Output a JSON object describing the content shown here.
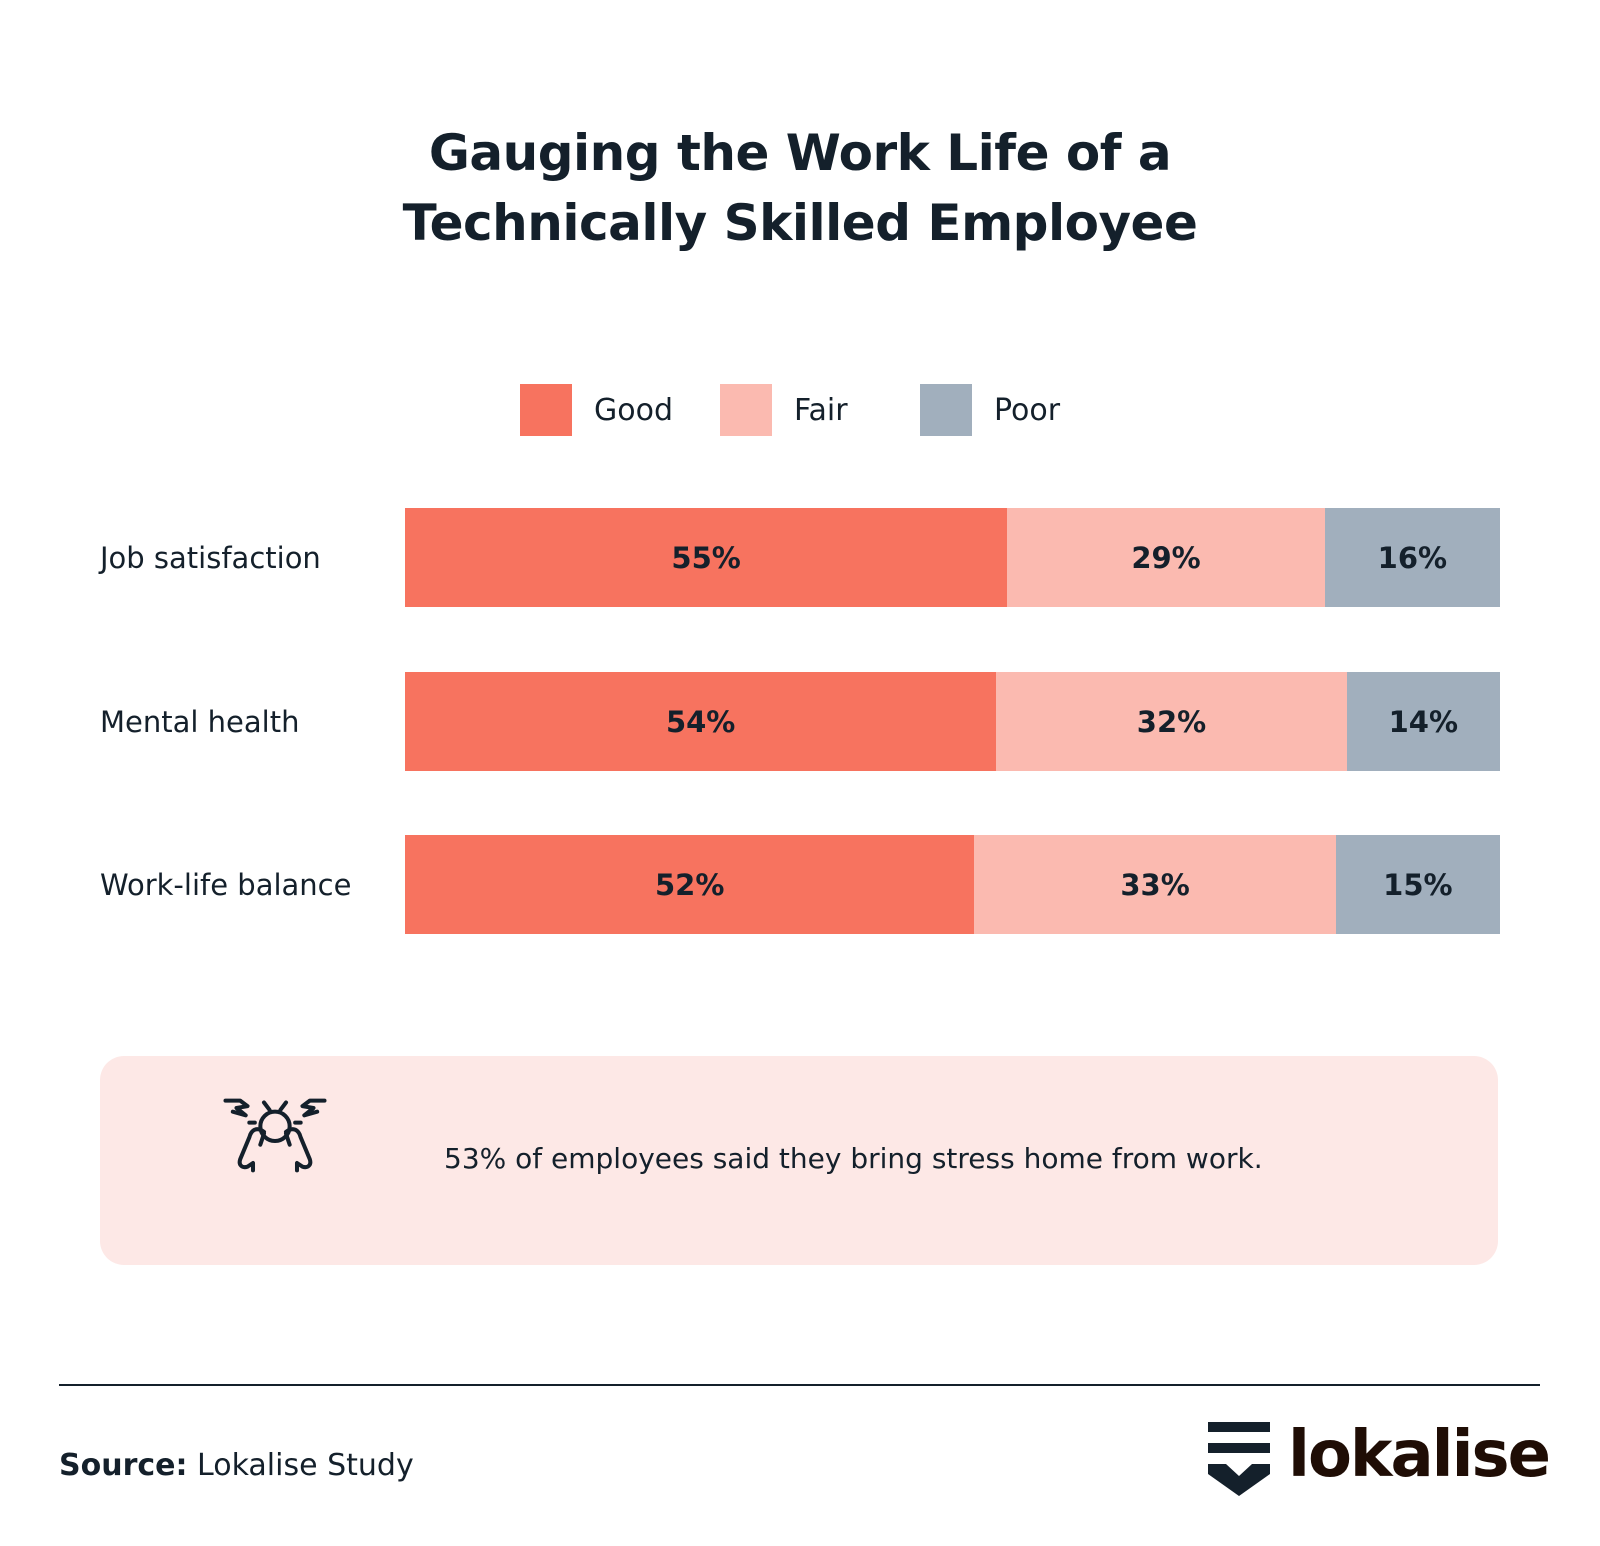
{
  "chart_data": {
    "type": "bar",
    "orientation": "horizontal",
    "stacked": true,
    "title": "Gauging the Work Life of a Technically Skilled Employee",
    "title_lines": [
      "Gauging the Work Life of a",
      "Technically Skilled Employee"
    ],
    "categories": [
      "Job satisfaction",
      "Mental health",
      "Work-life balance"
    ],
    "series": [
      {
        "name": "Good",
        "values": [
          55,
          54,
          52
        ],
        "color": "#f7735f"
      },
      {
        "name": "Fair",
        "values": [
          29,
          32,
          33
        ],
        "color": "#fbbab0"
      },
      {
        "name": "Poor",
        "values": [
          16,
          14,
          15
        ],
        "color": "#a1afbd"
      }
    ],
    "value_suffix": "%",
    "xlim": [
      0,
      100
    ],
    "grid": false,
    "legend_position": "top"
  },
  "callout": {
    "icon": "stressed-person-icon",
    "text": "53% of employees said they bring stress home from work.",
    "background": "#fde8e6"
  },
  "footer": {
    "source_label": "Source:",
    "source_value": " Lokalise Study",
    "logo_text": "lokalise"
  }
}
